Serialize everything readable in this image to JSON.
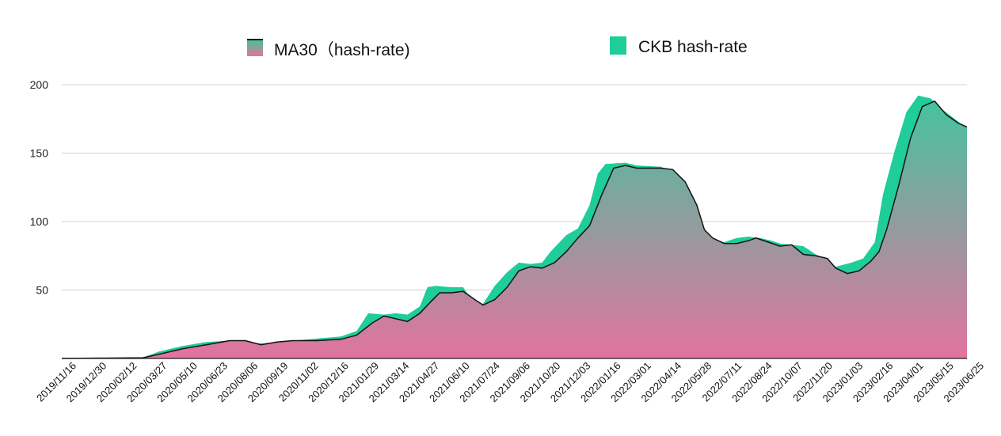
{
  "chart_data": {
    "type": "area",
    "title": "",
    "xlabel": "",
    "ylabel": "",
    "x_unit": "days since 2019/11/16",
    "xlim": [
      0,
      1317
    ],
    "ylim": [
      0,
      200
    ],
    "yticks": [
      50,
      100,
      150,
      200
    ],
    "grid": true,
    "legend_position": "top-center",
    "x_tick_labels": [
      "2019/11/16",
      "2019/12/30",
      "2020/02/12",
      "2020/03/27",
      "2020/05/10",
      "2020/06/23",
      "2020/08/06",
      "2020/09/19",
      "2020/11/02",
      "2020/12/16",
      "2021/01/29",
      "2021/03/14",
      "2021/04/27",
      "2021/06/10",
      "2021/07/24",
      "2021/09/06",
      "2021/10/20",
      "2021/12/03",
      "2022/01/16",
      "2022/03/01",
      "2022/04/14",
      "2022/05/28",
      "2022/07/11",
      "2022/08/24",
      "2022/10/07",
      "2022/11/20",
      "2023/01/03",
      "2023/02/16",
      "2023/04/01",
      "2023/05/15",
      "2023/06/25"
    ],
    "series": [
      {
        "name": "CKB hash-rate",
        "color": "#1ecd99",
        "x": [
          0,
          118,
          141,
          175,
          210,
          244,
          290,
          336,
          406,
          429,
          446,
          469,
          486,
          503,
          521,
          532,
          544,
          567,
          584,
          601,
          613,
          630,
          648,
          665,
          682,
          699,
          711,
          734,
          751,
          768,
          780,
          791,
          820,
          837,
          872,
          895,
          912,
          930,
          941,
          964,
          982,
          999,
          1016,
          1033,
          1045,
          1062,
          1079,
          1097,
          1114,
          1126,
          1149,
          1166,
          1183,
          1195,
          1212,
          1229,
          1246,
          1264,
          1281,
          1317
        ],
        "y": [
          0,
          0.5,
          5,
          9,
          12,
          13,
          11,
          13,
          16,
          20,
          33,
          32,
          33,
          32,
          38,
          52,
          53,
          52,
          52,
          40,
          40,
          53,
          63,
          70,
          69,
          70,
          78,
          90,
          95,
          112,
          135,
          142,
          143,
          141,
          140,
          135,
          115,
          95,
          86,
          85,
          88,
          89,
          88,
          86,
          84,
          83,
          82,
          76,
          72,
          67,
          70,
          73,
          85,
          120,
          152,
          180,
          192,
          190,
          182,
          168
        ]
      },
      {
        "name": "MA30（hash-rate)",
        "color_top": "#3cc79e",
        "color_bottom": "#e2739f",
        "x": [
          0,
          118,
          141,
          175,
          210,
          244,
          267,
          290,
          313,
          336,
          371,
          406,
          429,
          452,
          469,
          486,
          503,
          521,
          538,
          550,
          567,
          584,
          601,
          613,
          630,
          648,
          665,
          682,
          699,
          717,
          734,
          751,
          768,
          786,
          803,
          820,
          837,
          855,
          872,
          889,
          907,
          924,
          935,
          947,
          964,
          982,
          999,
          1010,
          1028,
          1045,
          1062,
          1079,
          1097,
          1114,
          1126,
          1143,
          1160,
          1177,
          1189,
          1200,
          1218,
          1235,
          1252,
          1270,
          1287,
          1304,
          1317
        ],
        "y": [
          0,
          0.5,
          3,
          7,
          10,
          13,
          13,
          10,
          12,
          13,
          13,
          14,
          17,
          26,
          31,
          29,
          27,
          33,
          42,
          48,
          48,
          49,
          43,
          39,
          43,
          52,
          64,
          67,
          66,
          70,
          78,
          88,
          97,
          120,
          139,
          141,
          139,
          139,
          139,
          138,
          129,
          112,
          94,
          88,
          84,
          84,
          86,
          88,
          85,
          82,
          83,
          76,
          75,
          73,
          66,
          62,
          64,
          71,
          78,
          94,
          127,
          161,
          184,
          188,
          178,
          172,
          169
        ]
      }
    ],
    "legend": [
      "MA30（hash-rate)",
      "CKB hash-rate"
    ]
  }
}
